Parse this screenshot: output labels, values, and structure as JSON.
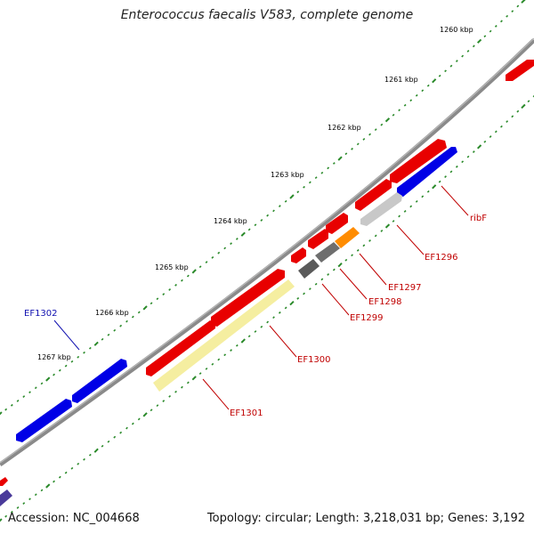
{
  "title": "Enterococcus faecalis V583, complete genome",
  "footer": {
    "accession": "Accession: NC_004668",
    "summary": "Topology: circular; Length: 3,218,031 bp; Genes: 3,192"
  },
  "colors": {
    "backbone": "#8a8a8a",
    "dot": "#2a8a2a",
    "label_red": "#c00000",
    "label_blue": "#1010b0"
  },
  "ticks": [
    {
      "label": "1260 kbp"
    },
    {
      "label": "1261 kbp"
    },
    {
      "label": "1262 kbp"
    },
    {
      "label": "1263 kbp"
    },
    {
      "label": "1264 kbp"
    },
    {
      "label": "1265 kbp"
    },
    {
      "label": "1266 kbp"
    },
    {
      "label": "1267 kbp"
    }
  ],
  "features": [
    {
      "name": "ribF",
      "color": "#0000e6"
    },
    {
      "name": "EF1296",
      "color": "#c8c8c8"
    },
    {
      "name": "EF1297",
      "color": "#ff8c00"
    },
    {
      "name": "EF1298",
      "color": "#6e6e6e"
    },
    {
      "name": "EF1299",
      "color": "#5a5a5a"
    },
    {
      "name": "EF1300",
      "color": "#e80000"
    },
    {
      "name": "EF1301",
      "color": "#f5eea0"
    },
    {
      "name": "EF1302",
      "color": "#0000e6"
    }
  ]
}
